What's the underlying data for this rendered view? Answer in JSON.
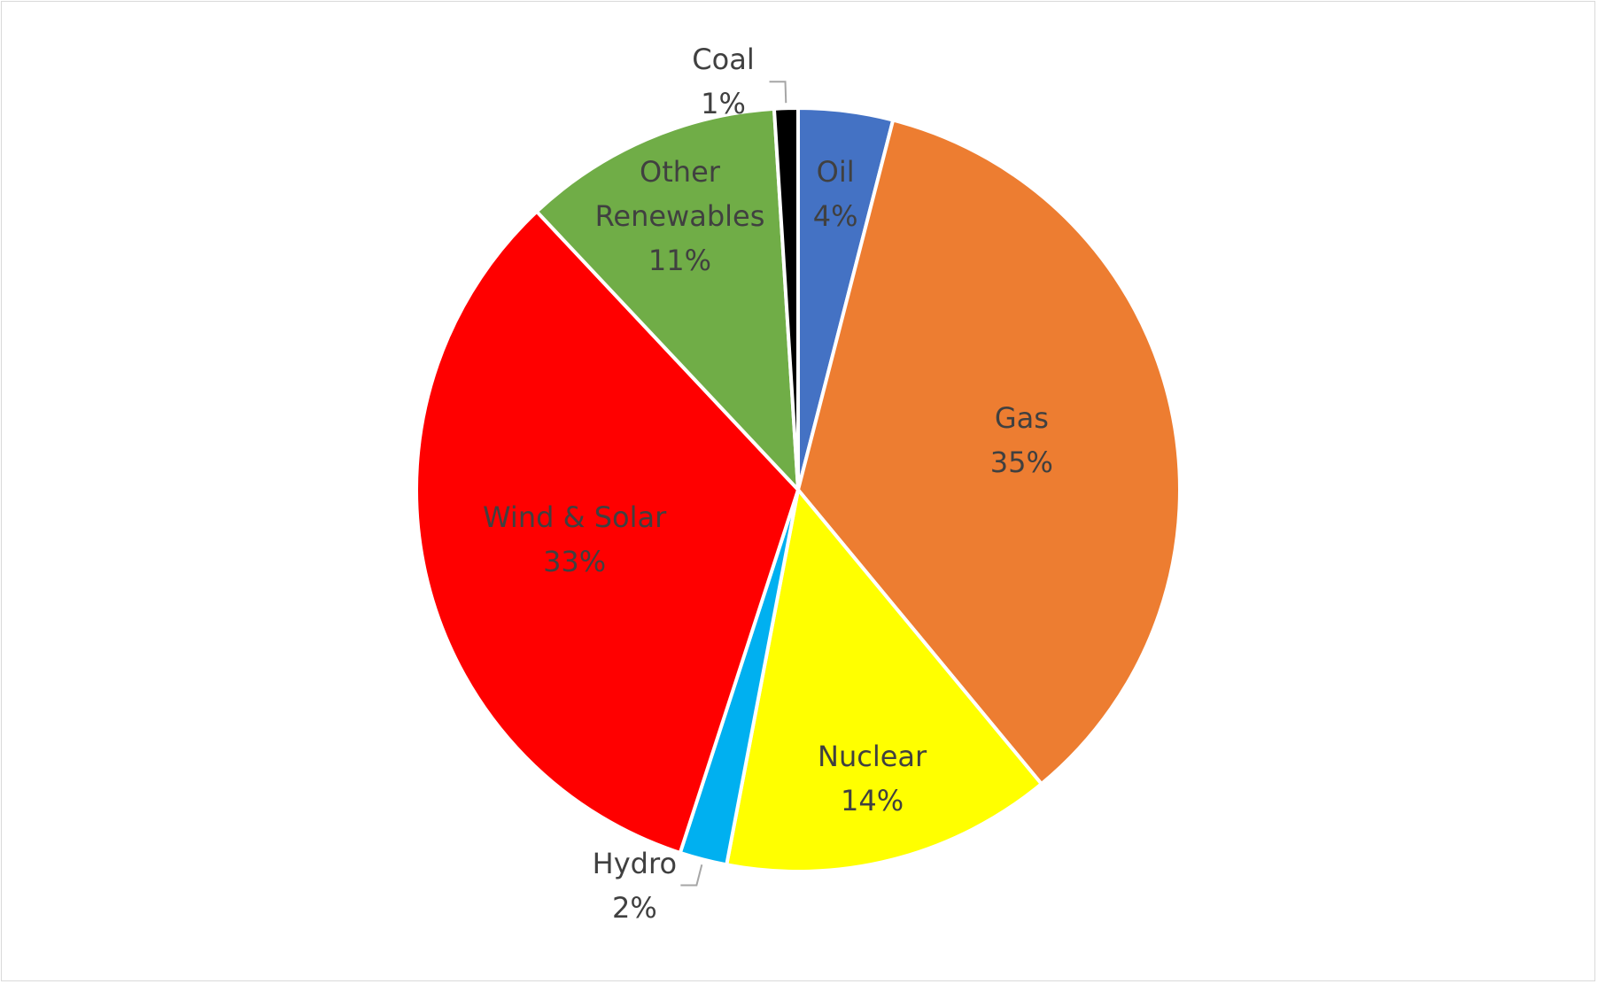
{
  "chart_data": {
    "type": "pie",
    "categories": [
      "Oil",
      "Gas",
      "Nuclear",
      "Hydro",
      "Wind & Solar",
      "Other Renewables",
      "Coal"
    ],
    "values": [
      4,
      35,
      14,
      2,
      33,
      11,
      1
    ],
    "value_labels": [
      "4%",
      "35%",
      "14%",
      "2%",
      "33%",
      "11%",
      "1%"
    ],
    "colors": [
      "#4472c4",
      "#ed7d31",
      "#ffff00",
      "#00b0f0",
      "#ff0000",
      "#70ad47",
      "#000000"
    ]
  }
}
